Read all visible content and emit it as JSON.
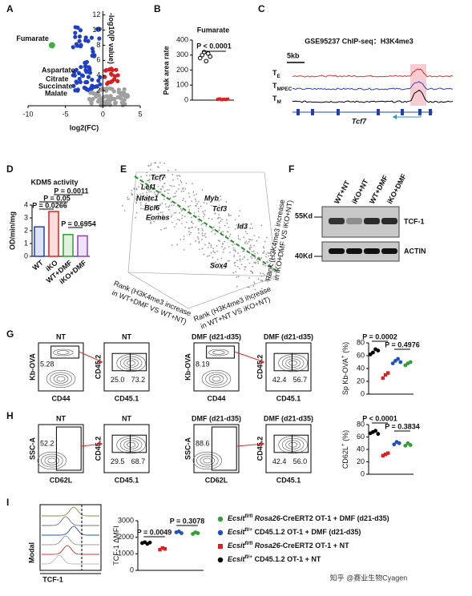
{
  "panel_labels": [
    "A",
    "B",
    "C",
    "D",
    "E",
    "F",
    "G",
    "H",
    "I"
  ],
  "A": {
    "xlabel": "log2(FC)",
    "ylabel": "-log10(P value)",
    "xlim": [
      -10,
      5
    ],
    "ylim": [
      0,
      12.5
    ],
    "xticks": [
      -10,
      -5,
      0,
      5
    ],
    "yticks": [
      2,
      4,
      6,
      8,
      10,
      12
    ],
    "highlight": {
      "name": "Fumarate",
      "x": -6.8,
      "y": 8,
      "color": "#3cb043"
    },
    "metabolites": [
      "Aspartate",
      "Citrate",
      "Succinate",
      "Malate"
    ]
  },
  "B": {
    "title": "Fumarate",
    "ylabel": "Peak area rate",
    "pvalue": "P < 0.0001",
    "ylim": [
      0,
      400
    ],
    "yticks": [
      0,
      100,
      200,
      300,
      400
    ],
    "groups": [
      {
        "color": "#000000",
        "marker": "circle",
        "values": [
          280,
          300,
          320,
          260,
          310,
          290
        ]
      },
      {
        "color": "#e02020",
        "marker": "square",
        "values": [
          5,
          8,
          3,
          6,
          4,
          7
        ]
      }
    ]
  },
  "C": {
    "title": "GSE95237 ChIP-seq：H3K4me3",
    "scale": "5kb",
    "gene": "Tcf7",
    "tracks": [
      {
        "color": "#e03030",
        "parts": [
          {
            "text": "T",
            "style": "plain"
          },
          {
            "text": "E",
            "style": "sub"
          }
        ]
      },
      {
        "color": "#3040c0",
        "parts": [
          {
            "text": "T",
            "style": "plain"
          },
          {
            "text": "MPEC",
            "style": "sub"
          }
        ]
      },
      {
        "color": "#000000",
        "parts": [
          {
            "text": "T",
            "style": "plain"
          },
          {
            "text": "M",
            "style": "sub"
          }
        ]
      }
    ]
  },
  "D": {
    "title": "KDM5 activity",
    "ylabel": "OD/min/mg",
    "ylim": [
      0,
      4
    ],
    "yticks": [
      0,
      1,
      2,
      3,
      4
    ],
    "categories": [
      "WT",
      "iKO",
      "WT+DMF",
      "iKO+DMF"
    ],
    "values": [
      2.3,
      3.5,
      1.7,
      1.6
    ],
    "colors": [
      "#2040c0",
      "#e02020",
      "#30a030",
      "#9040c0"
    ],
    "pvalues": [
      "P = 0.0011",
      "P = 0.05",
      "P = 0.0266",
      "P = 0.6954"
    ]
  },
  "E": {
    "genes": [
      "Tcf7",
      "Lef1",
      "Nfatc1",
      "Bcl6",
      "Eomes",
      "Myb",
      "Tcf3",
      "Id3",
      "Sox4"
    ],
    "axes": [
      [
        "Rank (H3K4me3 increase",
        "in WT+DMF VS WT+NT)"
      ],
      [
        "Rank (H3K4me3 increase",
        "in WT+NT VS iKO+NT)"
      ],
      [
        "Rank (H3K4me3 increase",
        "in iKO+DMF VS iKO+NT)"
      ]
    ]
  },
  "F": {
    "lanes": [
      "WT+NT",
      "iKO+NT",
      "WT+DMF",
      "iKO+DMF"
    ],
    "markers": [
      "55Kd",
      "40Kd"
    ],
    "proteins": [
      "TCF-1",
      "ACTIN"
    ]
  },
  "G": {
    "plots": [
      {
        "title": "NT",
        "ylabel": "Kb-OVA",
        "xlabel": "CD44",
        "gates": [
          "5.28"
        ]
      },
      {
        "title": "NT",
        "ylabel": "CD45.2",
        "xlabel": "CD45.1",
        "gates": [
          "25.0",
          "73.2"
        ]
      },
      {
        "title": "DMF (d21-d35)",
        "ylabel": "Kb-OVA",
        "xlabel": "CD44",
        "gates": [
          "8.19"
        ]
      },
      {
        "title": "DMF (d21-d35)",
        "ylabel": "CD45.2",
        "xlabel": "CD45.1",
        "gates": [
          "42.4",
          "56.7"
        ]
      }
    ],
    "summary": {
      "ylabel": [
        {
          "text": "Sp Kb-OVA",
          "style": "plain"
        },
        {
          "text": "+",
          "style": "sup"
        },
        {
          "text": " (%)",
          "style": "plain"
        }
      ],
      "ylim": [
        0,
        80
      ],
      "yticks": [
        0,
        20,
        40,
        60,
        80
      ],
      "pvalues": [
        "P = 0.0002",
        "P = 0.4976"
      ],
      "groups": [
        {
          "color": "#000000",
          "marker": "circle",
          "values": [
            62,
            65,
            70,
            68
          ]
        },
        {
          "color": "#e02020",
          "marker": "square",
          "values": [
            25,
            30,
            33
          ]
        },
        {
          "color": "#2050c0",
          "marker": "circle",
          "values": [
            48,
            52,
            55,
            50
          ]
        },
        {
          "color": "#30a030",
          "marker": "circle",
          "values": [
            45,
            48,
            50
          ]
        }
      ]
    }
  },
  "H": {
    "plots": [
      {
        "title": "NT",
        "ylabel": "SSC-A",
        "xlabel": "CD62L",
        "gates": [
          "52.2"
        ]
      },
      {
        "title": "NT",
        "ylabel": "CD45.2",
        "xlabel": "CD45.1",
        "gates": [
          "29.5",
          "68.7"
        ]
      },
      {
        "title": "DMF (d21-d35)",
        "ylabel": "SSC-A",
        "xlabel": "CD62L",
        "gates": [
          "88.6"
        ]
      },
      {
        "title": "DMF (d21-d35)",
        "ylabel": "CD45.2",
        "xlabel": "CD45.1",
        "gates": [
          "42.4",
          "56.0"
        ]
      }
    ],
    "summary": {
      "ylabel": [
        {
          "text": "CD62L",
          "style": "plain"
        },
        {
          "text": "+",
          "style": "sup"
        },
        {
          "text": " (%)",
          "style": "plain"
        }
      ],
      "ylim": [
        0,
        80
      ],
      "yticks": [
        0,
        20,
        40,
        60,
        80
      ],
      "pvalues": [
        "P < 0.0001",
        "P = 0.3834"
      ],
      "groups": [
        {
          "color": "#000000",
          "marker": "circle",
          "values": [
            66,
            68,
            70,
            65
          ]
        },
        {
          "color": "#e02020",
          "marker": "square",
          "values": [
            30,
            32,
            34
          ]
        },
        {
          "color": "#2050c0",
          "marker": "circle",
          "values": [
            48,
            52,
            50
          ]
        },
        {
          "color": "#30a030",
          "marker": "circle",
          "values": [
            46,
            50,
            47
          ]
        }
      ]
    }
  },
  "I": {
    "histogram": {
      "ylabel": "Modal",
      "xlabel": "TCF-1"
    },
    "summary": {
      "ylabel": [
        {
          "text": "TCF-1 ΔMFI",
          "style": "plain"
        }
      ],
      "ylim": [
        0,
        3000
      ],
      "yticks": [
        0,
        1000,
        2000,
        3000
      ],
      "pvalues": [
        "P = 0.0049",
        "P = 0.3078"
      ],
      "groups": [
        {
          "color": "#000000",
          "marker": "circle",
          "values": [
            1650,
            1700,
            1600,
            1680
          ]
        },
        {
          "color": "#e02020",
          "marker": "square",
          "values": [
            1250,
            1350,
            1300
          ]
        },
        {
          "color": "#2050c0",
          "marker": "circle",
          "values": [
            2300,
            2350,
            2250
          ]
        },
        {
          "color": "#30a030",
          "marker": "circle",
          "values": [
            2200,
            2300,
            2250
          ]
        }
      ]
    },
    "legend": [
      {
        "color": "#30a030",
        "marker": "circle",
        "parts": [
          {
            "text": "Ecsit",
            "style": "italic"
          },
          {
            "text": "fl/fl",
            "style": "sup"
          },
          {
            "text": " Rosa26",
            "style": "italic"
          },
          {
            "text": "-CreERT2 OT-1 + DMF (d21-d35)",
            "style": "plain"
          }
        ]
      },
      {
        "color": "#2050c0",
        "marker": "circle",
        "parts": [
          {
            "text": "Ecsit",
            "style": "italic"
          },
          {
            "text": "fl/+",
            "style": "sup"
          },
          {
            "text": " CD45.1.2 OT-1 + DMF (d21-d35)",
            "style": "plain"
          }
        ]
      },
      {
        "color": "#e02020",
        "marker": "square",
        "parts": [
          {
            "text": "Ecsit",
            "style": "italic"
          },
          {
            "text": "fl/fl",
            "style": "sup"
          },
          {
            "text": " Rosa26",
            "style": "italic"
          },
          {
            "text": "-CreERT2 OT-1 + NT",
            "style": "plain"
          }
        ]
      },
      {
        "color": "#000000",
        "marker": "circle",
        "parts": [
          {
            "text": "Ecsit",
            "style": "italic"
          },
          {
            "text": "fl/+",
            "style": "sup"
          },
          {
            "text": " CD45.1.2 OT-1 + NT",
            "style": "plain"
          }
        ]
      }
    ]
  },
  "watermark": "知乎 @赛业生物Cyagen"
}
